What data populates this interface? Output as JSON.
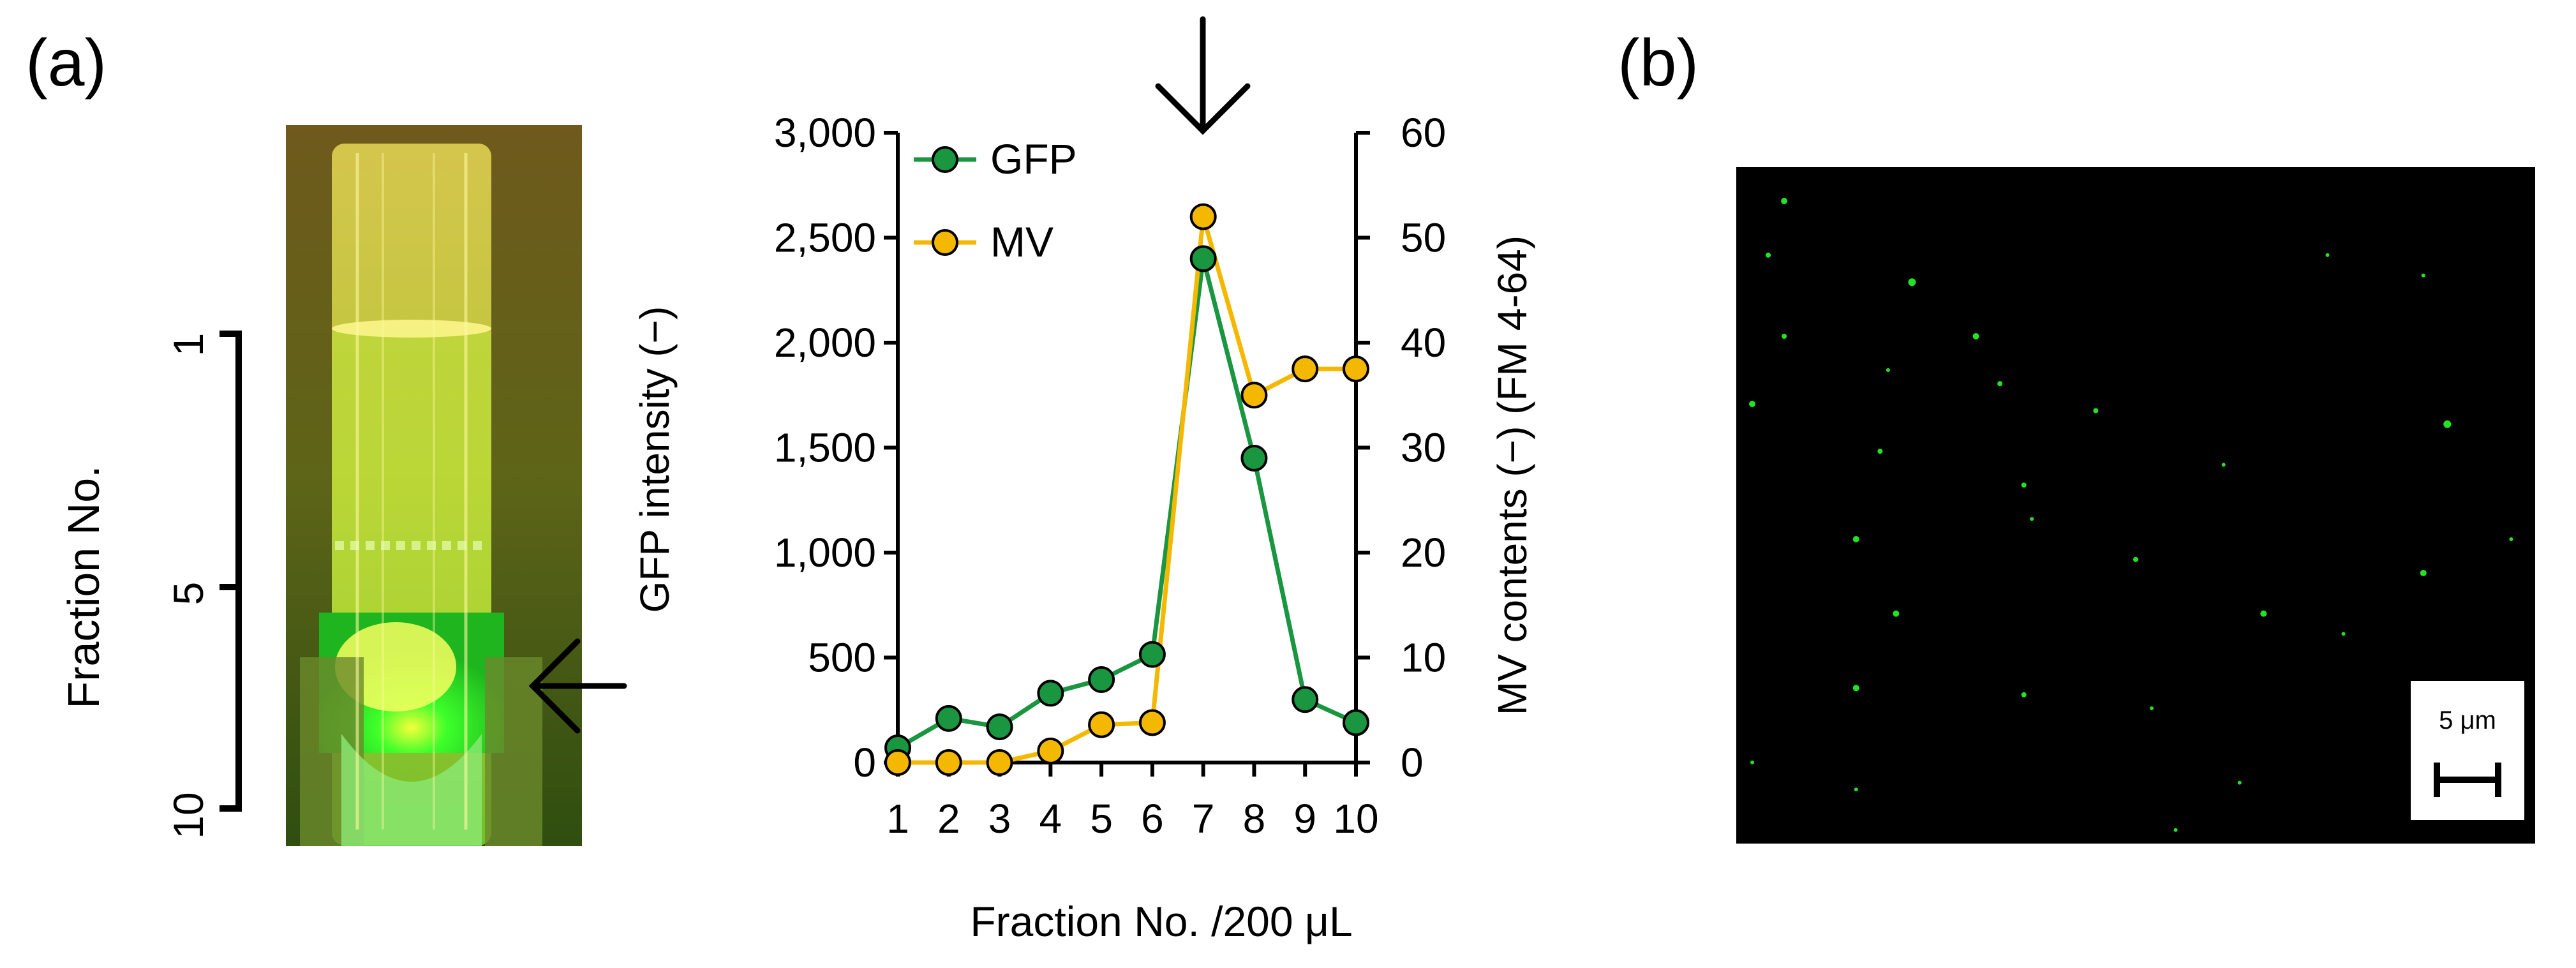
{
  "panel_a_label": "(a)",
  "panel_b_label": "(b)",
  "tube_axis": {
    "title": "Fraction No.",
    "ticks": [
      "1",
      "5",
      "10"
    ]
  },
  "chart_data": {
    "type": "line",
    "x": [
      1,
      2,
      3,
      4,
      5,
      6,
      7,
      8,
      9,
      10
    ],
    "series": [
      {
        "name": "GFP",
        "axis": "left",
        "color": "#1a9641",
        "values": [
          70,
          210,
          170,
          330,
          395,
          515,
          2400,
          1450,
          300,
          190
        ]
      },
      {
        "name": "MV",
        "axis": "right",
        "color": "#f5b800",
        "values": [
          0,
          0,
          0,
          1.1,
          3.6,
          3.8,
          52,
          35,
          37.5,
          37.5
        ]
      }
    ],
    "xlabel": "Fraction No.  /200 μL",
    "ylabel": "GFP intensity (−)",
    "ylabel_right": "MV contents (−) (FM 4-64)",
    "ylim": [
      0,
      3000
    ],
    "ylim_right": [
      0,
      60
    ],
    "yticks": [
      "0",
      "500",
      "1,000",
      "1,500",
      "2,000",
      "2,500",
      "3,000"
    ],
    "yticks_right": [
      "0",
      "10",
      "20",
      "30",
      "40",
      "50",
      "60"
    ],
    "xticks": [
      "1",
      "2",
      "3",
      "4",
      "5",
      "6",
      "7",
      "8",
      "9",
      "10"
    ],
    "legend_position": "top-left",
    "peak_marker_fraction": 7
  },
  "scale_bar_label": "5 μm"
}
